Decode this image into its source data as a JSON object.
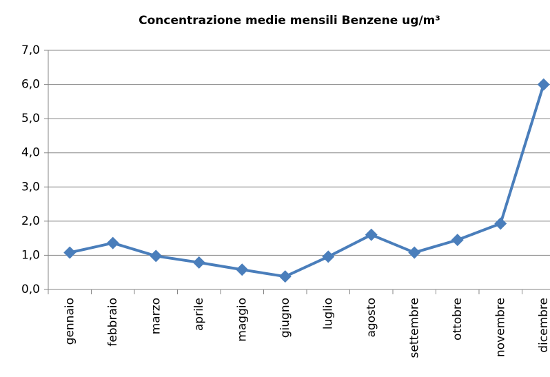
{
  "chart_data": {
    "type": "line",
    "title": "Concentrazione medie mensili Benzene ug/m³",
    "categories": [
      "gennaio",
      "febbraio",
      "marzo",
      "aprile",
      "maggio",
      "giugno",
      "luglio",
      "agosto",
      "settembre",
      "ottobre",
      "novembre",
      "dicembre"
    ],
    "series": [
      {
        "name": "Benzene",
        "color": "#4a7ebb",
        "values": [
          1.08,
          1.36,
          0.98,
          0.79,
          0.58,
          0.38,
          0.96,
          1.6,
          1.08,
          1.45,
          1.93,
          6.0
        ]
      }
    ],
    "ylim": [
      0,
      7
    ],
    "yticks": [
      {
        "value": 0,
        "label": "0,0"
      },
      {
        "value": 1,
        "label": "1,0"
      },
      {
        "value": 2,
        "label": "2,0"
      },
      {
        "value": 3,
        "label": "3,0"
      },
      {
        "value": 4,
        "label": "4,0"
      },
      {
        "value": 5,
        "label": "5,0"
      },
      {
        "value": 6,
        "label": "6,0"
      },
      {
        "value": 7,
        "label": "7,0"
      }
    ],
    "grid": true
  }
}
